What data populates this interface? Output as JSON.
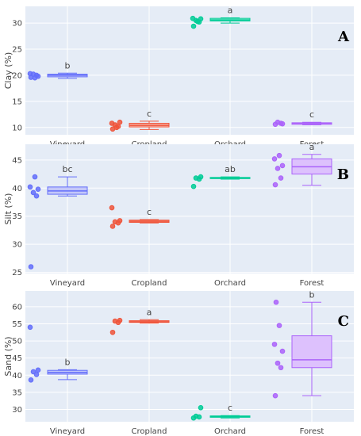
{
  "chart_data": [
    {
      "type": "box",
      "panel_label": "A",
      "ylabel": "Clay (%)",
      "ylim": [
        8.6,
        33.2
      ],
      "yticks": [
        10,
        15,
        20,
        25,
        30
      ],
      "categories": [
        "Vineyard",
        "Cropland",
        "Orchard",
        "Forest"
      ],
      "series": [
        {
          "category": "Vineyard",
          "color": "#636efa",
          "fill": "#c3c7f9",
          "letter": "b",
          "min": 19.4,
          "q1": 19.7,
          "median": 20.0,
          "q3": 20.2,
          "max": 20.4,
          "points": [
            19.6,
            20.0,
            20.2,
            19.8,
            20.3,
            19.5
          ]
        },
        {
          "category": "Cropland",
          "color": "#ef553b",
          "fill": "#f6b3a8",
          "letter": "c",
          "min": 9.6,
          "q1": 10.1,
          "median": 10.4,
          "q3": 10.8,
          "max": 11.2,
          "points": [
            9.7,
            10.2,
            10.5,
            11.0,
            10.8,
            10.0
          ]
        },
        {
          "category": "Orchard",
          "color": "#00cc96",
          "fill": "#99ebd5",
          "letter": "a",
          "min": 30.0,
          "q1": 30.4,
          "median": 30.6,
          "q3": 30.9,
          "max": 31.0,
          "points": [
            29.4,
            30.2,
            30.5,
            30.8,
            30.9,
            30.3
          ]
        },
        {
          "category": "Forest",
          "color": "#ab63fa",
          "fill": "#ddc1fd",
          "letter": "c",
          "min": 10.5,
          "q1": 10.6,
          "median": 10.8,
          "q3": 10.9,
          "max": 11.0,
          "points": [
            10.6,
            10.8,
            11.0,
            10.7
          ]
        }
      ]
    },
    {
      "type": "box",
      "panel_label": "B",
      "ylabel": "Silt (%)",
      "ylim": [
        24.8,
        47.8
      ],
      "yticks": [
        25,
        30,
        35,
        40,
        45
      ],
      "categories": [
        "Vineyard",
        "Cropland",
        "Orchard",
        "Forest"
      ],
      "series": [
        {
          "category": "Vineyard",
          "color": "#636efa",
          "fill": "#c3c7f9",
          "letter": "bc",
          "min": 38.6,
          "q1": 38.9,
          "median": 39.5,
          "q3": 40.2,
          "max": 42.0,
          "points": [
            26.0,
            38.6,
            39.2,
            39.8,
            40.2,
            42.0
          ]
        },
        {
          "category": "Cropland",
          "color": "#ef553b",
          "fill": "#f6b3a8",
          "letter": "c",
          "min": 33.8,
          "q1": 33.9,
          "median": 34.1,
          "q3": 34.3,
          "max": 34.4,
          "points": [
            33.2,
            33.8,
            34.0,
            34.2,
            36.5
          ]
        },
        {
          "category": "Orchard",
          "color": "#00cc96",
          "fill": "#99ebd5",
          "letter": "ab",
          "min": 41.6,
          "q1": 41.7,
          "median": 41.8,
          "q3": 41.9,
          "max": 42.0,
          "points": [
            40.3,
            41.6,
            41.8,
            42.0
          ]
        },
        {
          "category": "Forest",
          "color": "#ab63fa",
          "fill": "#ddc1fd",
          "letter": "a",
          "min": 40.5,
          "q1": 42.5,
          "median": 43.8,
          "q3": 45.2,
          "max": 46.0,
          "points": [
            40.6,
            41.8,
            43.5,
            44.0,
            45.2,
            45.8
          ]
        }
      ]
    },
    {
      "type": "box",
      "panel_label": "C",
      "ylabel": "Sand (%)",
      "ylim": [
        26.4,
        64.6
      ],
      "yticks": [
        30,
        35,
        40,
        45,
        50,
        55,
        60
      ],
      "categories": [
        "Vineyard",
        "Cropland",
        "Orchard",
        "Forest"
      ],
      "series": [
        {
          "category": "Vineyard",
          "color": "#636efa",
          "fill": "#c3c7f9",
          "letter": "b",
          "min": 38.7,
          "q1": 40.3,
          "median": 40.8,
          "q3": 41.4,
          "max": 41.6,
          "points": [
            38.6,
            40.2,
            41.0,
            41.5,
            54.0
          ]
        },
        {
          "category": "Cropland",
          "color": "#ef553b",
          "fill": "#f6b3a8",
          "letter": "a",
          "min": 55.2,
          "q1": 55.4,
          "median": 55.6,
          "q3": 55.9,
          "max": 56.2,
          "points": [
            52.5,
            55.4,
            55.8,
            56.0
          ]
        },
        {
          "category": "Orchard",
          "color": "#00cc96",
          "fill": "#99ebd5",
          "letter": "c",
          "min": 27.5,
          "q1": 27.7,
          "median": 27.9,
          "q3": 28.1,
          "max": 28.2,
          "points": [
            27.5,
            27.8,
            28.0,
            30.5
          ]
        },
        {
          "category": "Forest",
          "color": "#ab63fa",
          "fill": "#ddc1fd",
          "letter": "b",
          "min": 34.0,
          "q1": 42.2,
          "median": 44.5,
          "q3": 51.5,
          "max": 61.3,
          "points": [
            34.0,
            42.2,
            43.5,
            47.0,
            49.0,
            54.5,
            61.3
          ]
        }
      ]
    }
  ]
}
